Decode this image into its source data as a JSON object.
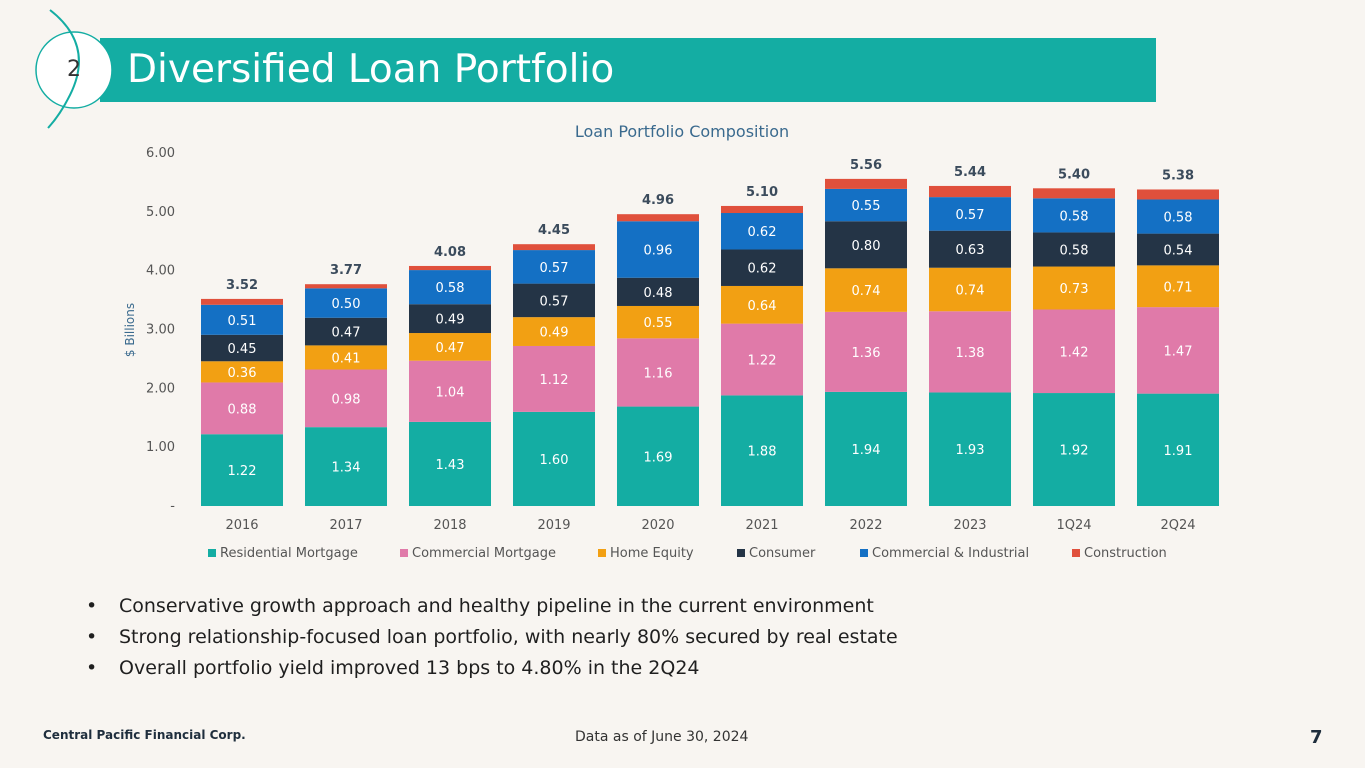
{
  "slide": {
    "section_number": "2",
    "title": "Diversified Loan Portfolio",
    "page_number": "7",
    "footer_company": "Central Pacific Financial Corp.",
    "footer_note": "Data as of June 30, 2024",
    "bullets": [
      "Conservative growth approach and healthy pipeline in the current environment",
      "Strong relationship-focused loan portfolio, with nearly 80% secured by real estate",
      "Overall portfolio yield improved 13 bps to 4.80% in the 2Q24"
    ]
  },
  "colors": {
    "title_bar": "#14ada3",
    "background": "#f8f5f1"
  },
  "chart_data": {
    "type": "bar",
    "stacked": true,
    "title": "Loan Portfolio Composition",
    "xlabel": "",
    "ylabel": "$ Billions",
    "ylim": [
      0,
      6
    ],
    "yticks": [
      "-",
      "1.00",
      "2.00",
      "3.00",
      "4.00",
      "5.00",
      "6.00"
    ],
    "legend_position": "bottom",
    "categories": [
      "2016",
      "2017",
      "2018",
      "2019",
      "2020",
      "2021",
      "2022",
      "2023",
      "1Q24",
      "2Q24"
    ],
    "totals": [
      "3.52",
      "3.77",
      "4.08",
      "4.45",
      "4.96",
      "5.10",
      "5.56",
      "5.44",
      "5.40",
      "5.38"
    ],
    "series": [
      {
        "name": "Residential Mortgage",
        "color": "#14ada3",
        "label_color": "#ffffff",
        "values": [
          1.22,
          1.34,
          1.43,
          1.6,
          1.69,
          1.88,
          1.94,
          1.93,
          1.92,
          1.91
        ],
        "labels": [
          "1.22",
          "1.34",
          "1.43",
          "1.60",
          "1.69",
          "1.88",
          "1.94",
          "1.93",
          "1.92",
          "1.91"
        ]
      },
      {
        "name": "Commercial Mortgage",
        "color": "#e07aa9",
        "label_color": "#ffffff",
        "values": [
          0.88,
          0.98,
          1.04,
          1.12,
          1.16,
          1.22,
          1.36,
          1.38,
          1.42,
          1.47
        ],
        "labels": [
          "0.88",
          "0.98",
          "1.04",
          "1.12",
          "1.16",
          "1.22",
          "1.36",
          "1.38",
          "1.42",
          "1.47"
        ]
      },
      {
        "name": "Home Equity",
        "color": "#f2a013",
        "label_color": "#ffffff",
        "values": [
          0.36,
          0.41,
          0.47,
          0.49,
          0.55,
          0.64,
          0.74,
          0.74,
          0.73,
          0.71
        ],
        "labels": [
          "0.36",
          "0.41",
          "0.47",
          "0.49",
          "0.55",
          "0.64",
          "0.74",
          "0.74",
          "0.73",
          "0.71"
        ]
      },
      {
        "name": "Consumer",
        "color": "#243446",
        "label_color": "#ffffff",
        "values": [
          0.45,
          0.47,
          0.49,
          0.57,
          0.48,
          0.62,
          0.8,
          0.63,
          0.58,
          0.54
        ],
        "labels": [
          "0.45",
          "0.47",
          "0.49",
          "0.57",
          "0.48",
          "0.62",
          "0.80",
          "0.63",
          "0.58",
          "0.54"
        ]
      },
      {
        "name": "Commercial & Industrial",
        "color": "#1470c4",
        "label_color": "#ffffff",
        "values": [
          0.51,
          0.5,
          0.58,
          0.57,
          0.96,
          0.62,
          0.55,
          0.57,
          0.58,
          0.58
        ],
        "labels": [
          "0.51",
          "0.50",
          "0.58",
          "0.57",
          "0.96",
          "0.62",
          "0.55",
          "0.57",
          "0.58",
          "0.58"
        ]
      },
      {
        "name": "Construction",
        "color": "#e0503c",
        "label_color": "#ffffff",
        "values": [
          0.1,
          0.07,
          0.07,
          0.1,
          0.12,
          0.12,
          0.17,
          0.19,
          0.17,
          0.17
        ],
        "labels": []
      }
    ]
  }
}
